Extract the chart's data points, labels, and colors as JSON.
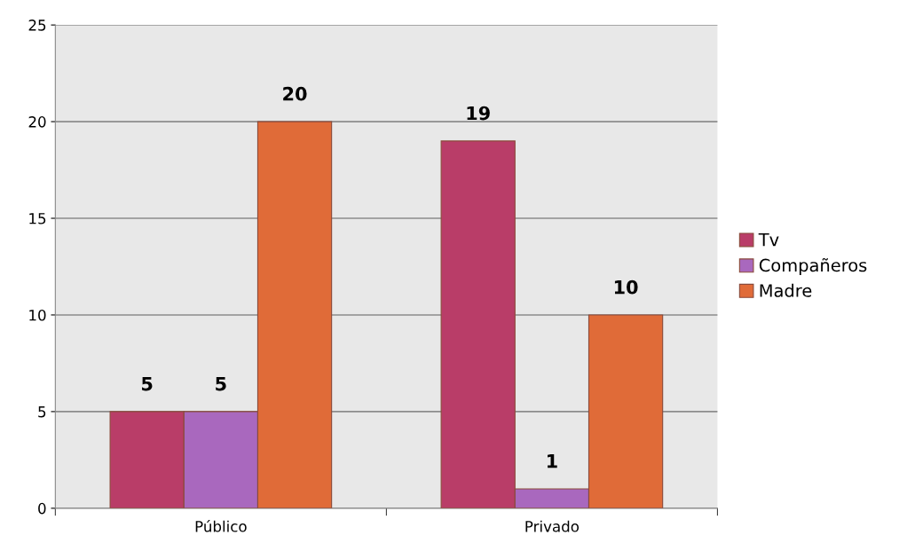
{
  "chart_data": {
    "type": "bar",
    "categories": [
      "Público",
      "Privado"
    ],
    "series": [
      {
        "name": "Tv",
        "color": "#b93d68",
        "values": [
          5,
          19
        ]
      },
      {
        "name": "Compañeros",
        "color": "#a968be",
        "values": [
          5,
          1
        ]
      },
      {
        "name": "Madre",
        "color": "#e06b38",
        "values": [
          20,
          10
        ]
      }
    ],
    "ylim": [
      0,
      25
    ],
    "yticks": [
      0,
      5,
      10,
      15,
      20,
      25
    ],
    "grid": "y",
    "legend": "right",
    "data_labels": true
  }
}
